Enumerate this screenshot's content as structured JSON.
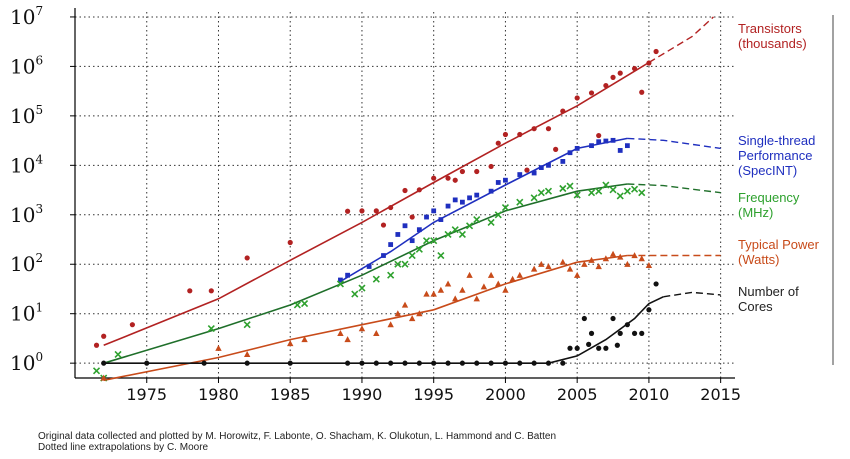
{
  "chart_data": {
    "type": "scatter",
    "title": "",
    "xlabel": "",
    "ylabel": "",
    "y_scale": "log",
    "xlim": [
      1970,
      2016
    ],
    "ylim_log10": [
      -0.3,
      7.1
    ],
    "y_ticks": [
      {
        "base": "10",
        "exp": "0",
        "value": 1
      },
      {
        "base": "10",
        "exp": "1",
        "value": 10
      },
      {
        "base": "10",
        "exp": "2",
        "value": 100
      },
      {
        "base": "10",
        "exp": "3",
        "value": 1000
      },
      {
        "base": "10",
        "exp": "4",
        "value": 10000
      },
      {
        "base": "10",
        "exp": "5",
        "value": 100000
      },
      {
        "base": "10",
        "exp": "6",
        "value": 1000000
      },
      {
        "base": "10",
        "exp": "7",
        "value": 10000000
      }
    ],
    "x_ticks": [
      "1975",
      "1980",
      "1985",
      "1990",
      "1995",
      "2000",
      "2005",
      "2010",
      "2015"
    ],
    "grid": true,
    "legend_placement": "right",
    "series": [
      {
        "name": "Transistors (thousands)",
        "label_lines": [
          "Transistors",
          "(thousands)"
        ],
        "color": "#b22222",
        "marker": "circle",
        "trend": [
          [
            1972,
            2.3
          ],
          [
            1980,
            20
          ],
          [
            1985,
            120
          ],
          [
            1990,
            700
          ],
          [
            1995,
            4500
          ],
          [
            2000,
            28000
          ],
          [
            2005,
            160000
          ],
          [
            2010,
            1200000
          ]
        ],
        "extrapolation": [
          [
            2010,
            1200000
          ],
          [
            2013,
            4000000
          ],
          [
            2014.5,
            10000000
          ]
        ],
        "points": [
          [
            1971.5,
            2.3
          ],
          [
            1972,
            3.5
          ],
          [
            1974,
            6
          ],
          [
            1978,
            29
          ],
          [
            1979.5,
            29
          ],
          [
            1982,
            134
          ],
          [
            1985,
            275
          ],
          [
            1989,
            1180
          ],
          [
            1990,
            1200
          ],
          [
            1991,
            1200
          ],
          [
            1993,
            3100
          ],
          [
            1994,
            3200
          ],
          [
            1995,
            5500
          ],
          [
            1996,
            5500
          ],
          [
            1997,
            7500
          ],
          [
            1998,
            7500
          ],
          [
            1999,
            9500
          ],
          [
            1999.5,
            28000
          ],
          [
            2000,
            42000
          ],
          [
            2001,
            42000
          ],
          [
            2002,
            55000
          ],
          [
            2003,
            55000
          ],
          [
            2004,
            125000
          ],
          [
            2005,
            230000
          ],
          [
            2006,
            291000
          ],
          [
            2007,
            410000
          ],
          [
            2008,
            731000
          ],
          [
            2009,
            904000
          ],
          [
            2010,
            1170000
          ],
          [
            2010.5,
            2000000
          ],
          [
            1993.5,
            900
          ],
          [
            1992,
            1400
          ],
          [
            1991.5,
            620
          ],
          [
            1996.5,
            5000
          ],
          [
            2001.5,
            8000
          ],
          [
            2003.5,
            21000
          ],
          [
            2006.5,
            40000
          ],
          [
            2007.5,
            600000
          ],
          [
            2009.5,
            300000
          ]
        ]
      },
      {
        "name": "Single-thread Performance (SpecINT)",
        "label_lines": [
          "Single-thread",
          "Performance",
          "(SpecINT)"
        ],
        "color": "#1f2fbf",
        "marker": "square",
        "trend": [
          [
            1988.5,
            45
          ],
          [
            1992,
            180
          ],
          [
            1995,
            700
          ],
          [
            2000,
            4000
          ],
          [
            2005,
            22000
          ],
          [
            2008.5,
            35000
          ]
        ],
        "extrapolation": [
          [
            2008.5,
            35000
          ],
          [
            2011,
            32000
          ],
          [
            2015,
            22000
          ]
        ],
        "points": [
          [
            1988.5,
            48
          ],
          [
            1989,
            60
          ],
          [
            1990.5,
            90
          ],
          [
            1991.5,
            150
          ],
          [
            1992,
            250
          ],
          [
            1992.5,
            400
          ],
          [
            1993,
            600
          ],
          [
            1993.5,
            300
          ],
          [
            1994,
            500
          ],
          [
            1994.5,
            900
          ],
          [
            1995,
            1200
          ],
          [
            1995.5,
            800
          ],
          [
            1996,
            1500
          ],
          [
            1996.5,
            2000
          ],
          [
            1997,
            1800
          ],
          [
            1997.5,
            2200
          ],
          [
            1998,
            2500
          ],
          [
            1999,
            3000
          ],
          [
            1999.5,
            4500
          ],
          [
            2000,
            5000
          ],
          [
            2001,
            6500
          ],
          [
            2002,
            7000
          ],
          [
            2002.5,
            9000
          ],
          [
            2003,
            10000
          ],
          [
            2004,
            12000
          ],
          [
            2004.5,
            18000
          ],
          [
            2005,
            22000
          ],
          [
            2006,
            25000
          ],
          [
            2006.5,
            30000
          ],
          [
            2007,
            31000
          ],
          [
            2007.5,
            32000
          ],
          [
            2008,
            20000
          ],
          [
            2008.5,
            25000
          ]
        ]
      },
      {
        "name": "Frequency (MHz)",
        "label_lines": [
          "Frequency",
          "(MHz)"
        ],
        "color": "#2ea12e",
        "marker": "x",
        "trend": [
          [
            1972,
            1
          ],
          [
            1980,
            5
          ],
          [
            1985,
            15
          ],
          [
            1990,
            60
          ],
          [
            1995,
            300
          ],
          [
            2000,
            1200
          ],
          [
            2005,
            3000
          ],
          [
            2008.5,
            4200
          ]
        ],
        "extrapolation": [
          [
            2008.5,
            4200
          ],
          [
            2011,
            3900
          ],
          [
            2015,
            2800
          ]
        ],
        "points": [
          [
            1971.5,
            0.7
          ],
          [
            1972,
            0.5
          ],
          [
            1973,
            1.5
          ],
          [
            1979.5,
            5
          ],
          [
            1982,
            6
          ],
          [
            1985.5,
            15
          ],
          [
            1986,
            16
          ],
          [
            1988.5,
            40
          ],
          [
            1989.5,
            25
          ],
          [
            1990,
            33
          ],
          [
            1991,
            50
          ],
          [
            1992,
            60
          ],
          [
            1992.5,
            100
          ],
          [
            1993,
            100
          ],
          [
            1993.5,
            150
          ],
          [
            1994,
            200
          ],
          [
            1994.5,
            300
          ],
          [
            1995,
            300
          ],
          [
            1995.5,
            150
          ],
          [
            1996,
            400
          ],
          [
            1996.5,
            500
          ],
          [
            1997,
            400
          ],
          [
            1997.5,
            600
          ],
          [
            1998,
            800
          ],
          [
            1999,
            700
          ],
          [
            1999.5,
            1000
          ],
          [
            2000,
            1400
          ],
          [
            2001,
            1800
          ],
          [
            2002,
            2200
          ],
          [
            2002.5,
            2800
          ],
          [
            2003,
            3000
          ],
          [
            2004,
            3400
          ],
          [
            2004.5,
            3800
          ],
          [
            2005,
            2500
          ],
          [
            2006,
            2800
          ],
          [
            2006.5,
            3000
          ],
          [
            2007,
            4000
          ],
          [
            2007.5,
            3200
          ],
          [
            2008,
            2400
          ],
          [
            2008.5,
            3000
          ],
          [
            2009,
            3300
          ],
          [
            2009.5,
            2800
          ]
        ]
      },
      {
        "name": "Typical Power (Watts)",
        "label_lines": [
          "Typical Power",
          "(Watts)"
        ],
        "color": "#c84b1a",
        "marker": "triangle",
        "trend": [
          [
            1972,
            0.45
          ],
          [
            1980,
            1.3
          ],
          [
            1985,
            3
          ],
          [
            1990,
            6
          ],
          [
            1995,
            12
          ],
          [
            2000,
            40
          ],
          [
            2005,
            110
          ],
          [
            2008.5,
            150
          ]
        ],
        "extrapolation": [
          [
            2008.5,
            150
          ],
          [
            2015,
            150
          ]
        ],
        "points": [
          [
            1972,
            0.5
          ],
          [
            1980,
            2
          ],
          [
            1982,
            1.5
          ],
          [
            1985,
            2.5
          ],
          [
            1986,
            3
          ],
          [
            1988.5,
            4
          ],
          [
            1989,
            3
          ],
          [
            1990,
            5
          ],
          [
            1991,
            4
          ],
          [
            1992,
            6
          ],
          [
            1992.5,
            10
          ],
          [
            1993,
            15
          ],
          [
            1993.5,
            8
          ],
          [
            1994,
            10
          ],
          [
            1994.5,
            25
          ],
          [
            1995,
            25
          ],
          [
            1995.5,
            30
          ],
          [
            1996,
            40
          ],
          [
            1996.5,
            20
          ],
          [
            1997,
            30
          ],
          [
            1997.5,
            60
          ],
          [
            1998,
            20
          ],
          [
            1998.5,
            35
          ],
          [
            1999,
            60
          ],
          [
            1999.5,
            40
          ],
          [
            2000,
            30
          ],
          [
            2000.5,
            50
          ],
          [
            2001,
            60
          ],
          [
            2002,
            80
          ],
          [
            2002.5,
            100
          ],
          [
            2003,
            90
          ],
          [
            2004,
            110
          ],
          [
            2004.5,
            80
          ],
          [
            2005,
            60
          ],
          [
            2005.5,
            100
          ],
          [
            2006,
            120
          ],
          [
            2006.5,
            90
          ],
          [
            2007,
            130
          ],
          [
            2007.5,
            160
          ],
          [
            2008,
            140
          ],
          [
            2008.5,
            100
          ],
          [
            2009,
            150
          ],
          [
            2009.5,
            130
          ],
          [
            2010,
            95
          ]
        ]
      },
      {
        "name": "Number of Cores",
        "label_lines": [
          "Number of",
          "Cores"
        ],
        "color": "#111111",
        "marker": "circle",
        "trend": [
          [
            1972,
            1
          ],
          [
            2003,
            1
          ],
          [
            2005,
            1.4
          ],
          [
            2007,
            3
          ],
          [
            2009,
            8
          ],
          [
            2010,
            16
          ],
          [
            2011,
            22
          ]
        ],
        "extrapolation": [
          [
            2011,
            22
          ],
          [
            2013,
            27
          ],
          [
            2015,
            24
          ]
        ],
        "points": [
          [
            1972,
            1
          ],
          [
            1975,
            1
          ],
          [
            1979,
            1
          ],
          [
            1982,
            1
          ],
          [
            1985,
            1
          ],
          [
            1989,
            1
          ],
          [
            1990,
            1
          ],
          [
            1991,
            1
          ],
          [
            1992,
            1
          ],
          [
            1993,
            1
          ],
          [
            1994,
            1
          ],
          [
            1995,
            1
          ],
          [
            1996,
            1
          ],
          [
            1997,
            1
          ],
          [
            1998,
            1
          ],
          [
            1999,
            1
          ],
          [
            2000,
            1
          ],
          [
            2001,
            1
          ],
          [
            2002,
            1
          ],
          [
            2003,
            1
          ],
          [
            2004,
            1
          ],
          [
            2004.5,
            2
          ],
          [
            2005,
            2
          ],
          [
            2005.5,
            8
          ],
          [
            2006,
            4
          ],
          [
            2006.5,
            2
          ],
          [
            2007,
            2
          ],
          [
            2007.5,
            8
          ],
          [
            2008,
            4
          ],
          [
            2008.5,
            6
          ],
          [
            2009,
            4
          ],
          [
            2009.5,
            4
          ],
          [
            2010,
            12
          ],
          [
            2010.5,
            40
          ],
          [
            2005.8,
            2.4
          ],
          [
            2007.8,
            2.3
          ]
        ]
      }
    ]
  },
  "footer": {
    "credit_line": "Original data collected and plotted by M. Horowitz, F. Labonte, O. Shacham, K. Olukotun, L. Hammond and C. Batten",
    "extrapolation_line": "Dotted line extrapolations by C. Moore"
  }
}
